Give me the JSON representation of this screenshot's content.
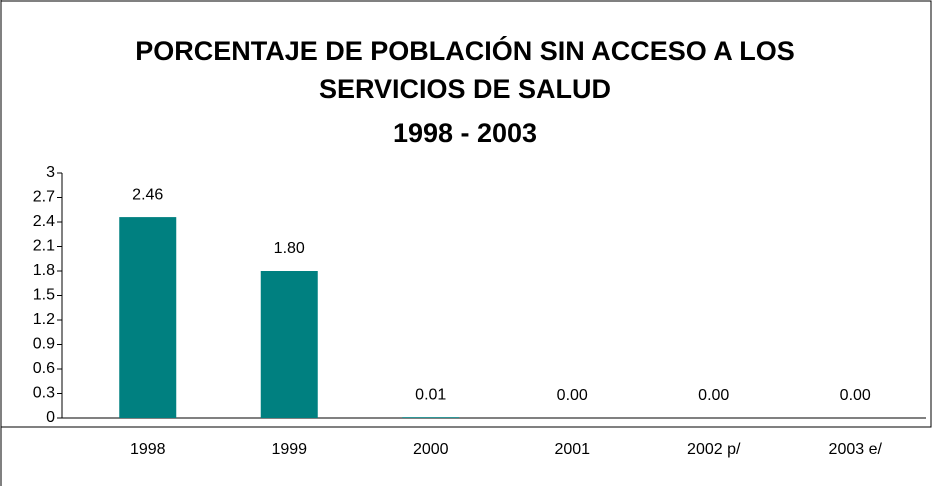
{
  "chart_data": {
    "type": "bar",
    "title": "PORCENTAJE DE POBLACIÓN SIN ACCESO A LOS SERVICIOS DE SALUD",
    "subtitle": "1998 - 2003",
    "categories": [
      "1998",
      "1999",
      "2000",
      "2001",
      "2002 p/",
      "2003 e/"
    ],
    "values": [
      2.46,
      1.8,
      0.01,
      0,
      0,
      0
    ],
    "value_labels": [
      "2.46",
      "1.80",
      "0.01",
      "0.00",
      "0.00",
      "0.00"
    ],
    "color": "#008080",
    "ylim": [
      0,
      3
    ],
    "yticks": [
      0,
      0.3,
      0.6,
      0.9,
      1.2,
      1.5,
      1.8,
      2.1,
      2.4,
      2.7,
      3
    ],
    "grid": false
  }
}
